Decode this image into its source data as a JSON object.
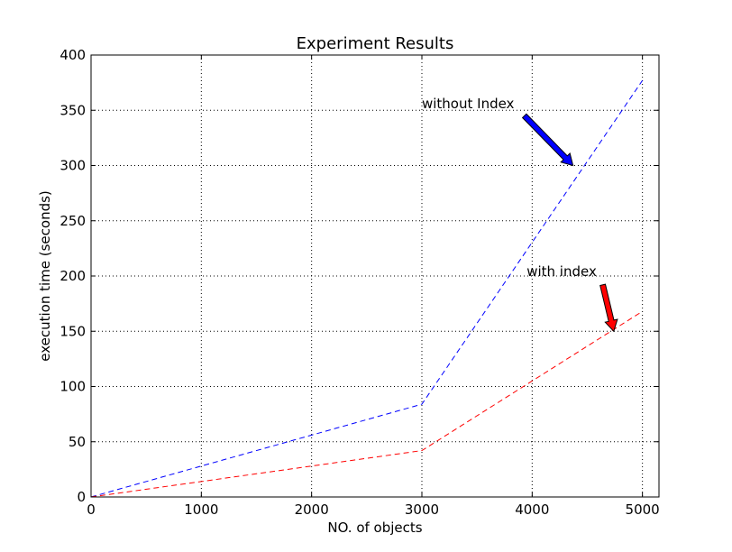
{
  "chart_data": {
    "type": "line",
    "title": "Experiment Results",
    "xlabel": "NO. of objects",
    "ylabel": "execution time (seconds)",
    "xlim": [
      0,
      5150
    ],
    "ylim": [
      0,
      400
    ],
    "xticks": [
      0,
      1000,
      2000,
      3000,
      4000,
      5000
    ],
    "yticks": [
      0,
      50,
      100,
      150,
      200,
      250,
      300,
      350,
      400
    ],
    "grid": true,
    "series": [
      {
        "color": "#0000ff",
        "style": "dashed",
        "x": [
          0,
          3000,
          5000
        ],
        "y": [
          0,
          84,
          377
        ]
      },
      {
        "color": "#ff0000",
        "style": "dashed",
        "x": [
          0,
          3000,
          5000
        ],
        "y": [
          0,
          42,
          168
        ]
      }
    ],
    "annotations": [
      {
        "text": "without Index",
        "text_x": 3000,
        "text_y": 352,
        "arrow_from": [
          3930,
          345
        ],
        "arrow_to": [
          4370,
          300
        ],
        "color": "#0000ff"
      },
      {
        "text": "with index",
        "text_x": 3950,
        "text_y": 200,
        "arrow_from": [
          4640,
          192
        ],
        "arrow_to": [
          4740,
          150
        ],
        "color": "#ff0000"
      }
    ]
  }
}
